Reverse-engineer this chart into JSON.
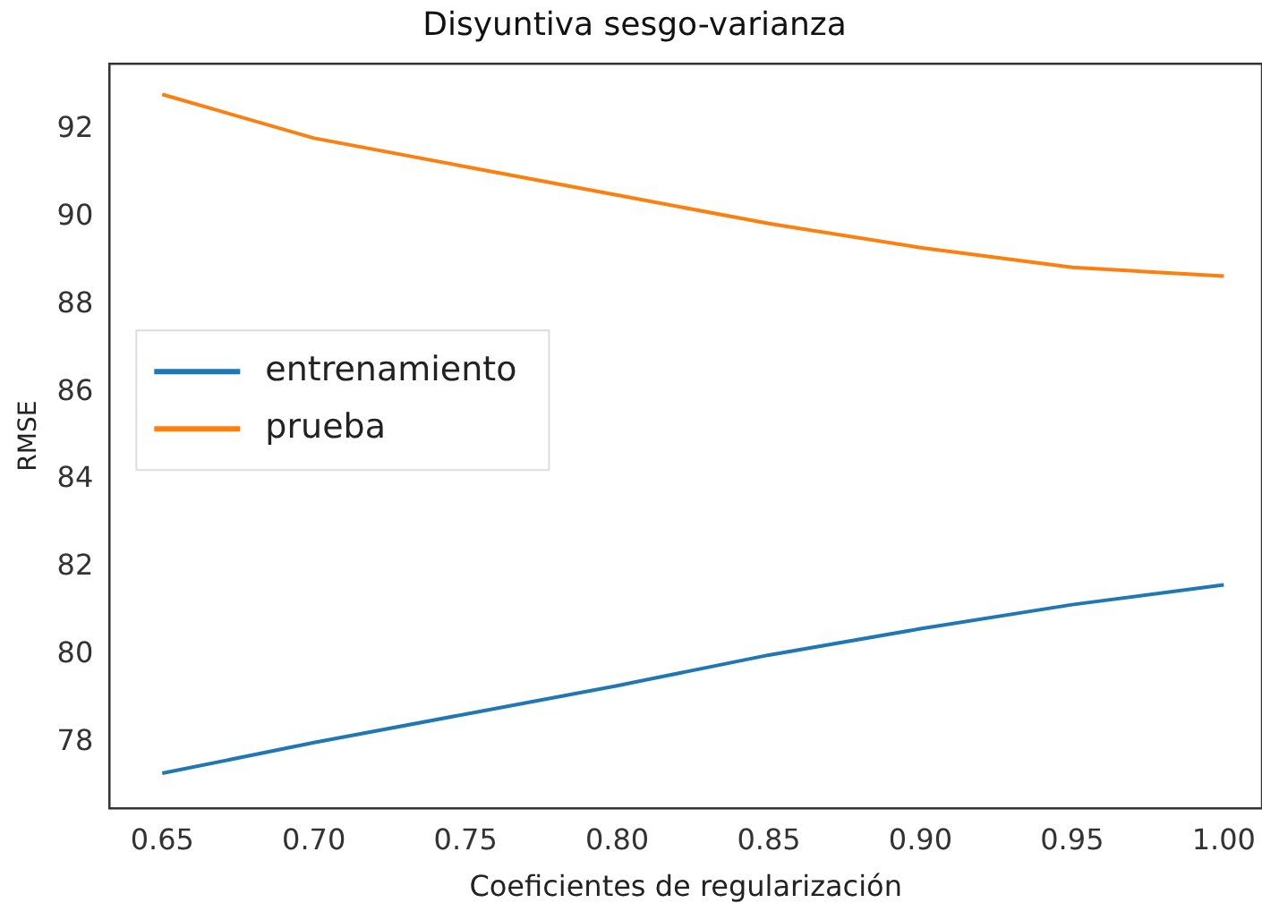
{
  "chart_data": {
    "type": "line",
    "title": "Disyuntiva sesgo-varianza",
    "xlabel": "Coeficientes de regularización",
    "ylabel": "RMSE",
    "x": [
      0.65,
      0.7,
      0.75,
      0.8,
      0.85,
      0.9,
      0.95,
      1.0
    ],
    "series": [
      {
        "name": "entrenamiento",
        "color": "#1f77b4",
        "values": [
          77.3,
          78.0,
          78.65,
          79.3,
          80.0,
          80.6,
          81.15,
          81.6
        ]
      },
      {
        "name": "prueba",
        "color": "#ff7f0e",
        "values": [
          92.8,
          91.8,
          91.15,
          90.5,
          89.85,
          89.3,
          88.85,
          88.65
        ]
      }
    ],
    "xlim": [
      0.6326,
      1.0126
    ],
    "xticks": [
      {
        "value": 0.65,
        "label": "0.65"
      },
      {
        "value": 0.7,
        "label": "0.70"
      },
      {
        "value": 0.75,
        "label": "0.75"
      },
      {
        "value": 0.8,
        "label": "0.80"
      },
      {
        "value": 0.85,
        "label": "0.85"
      },
      {
        "value": 0.9,
        "label": "0.90"
      },
      {
        "value": 0.95,
        "label": "0.95"
      },
      {
        "value": 1.0,
        "label": "1.00"
      }
    ],
    "ylim": [
      76.5,
      93.5
    ],
    "yticks": [
      78,
      80,
      82,
      84,
      86,
      88,
      90,
      92
    ],
    "legend": "center left",
    "grid": false,
    "marker": "none",
    "line_style": "solid"
  }
}
